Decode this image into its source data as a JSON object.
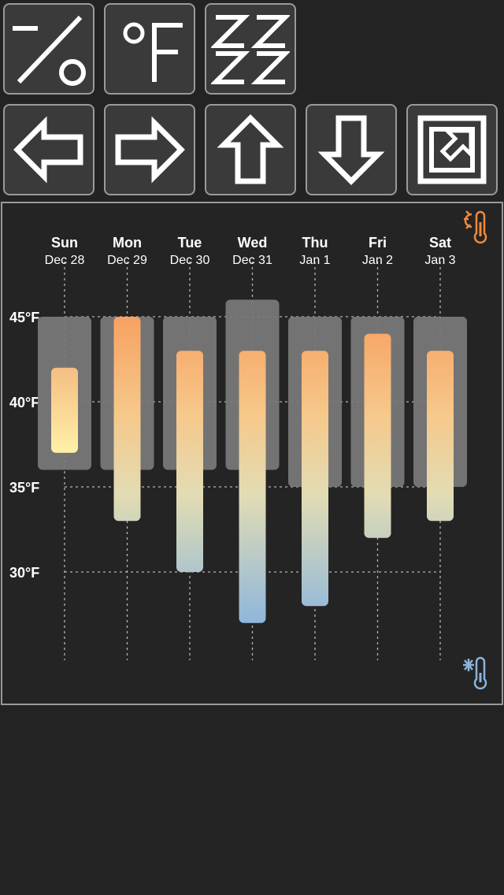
{
  "toolbar": {
    "row1": [
      {
        "name": "percent-toggle-button",
        "icon": "percent-icon"
      },
      {
        "name": "fahrenheit-toggle-button",
        "icon": "fahrenheit-icon"
      },
      {
        "name": "sleep-button",
        "icon": "zzzz-icon"
      }
    ],
    "row2": [
      {
        "name": "pan-left-button",
        "icon": "arrow-left-icon"
      },
      {
        "name": "pan-right-button",
        "icon": "arrow-right-icon"
      },
      {
        "name": "pan-up-button",
        "icon": "arrow-up-icon"
      },
      {
        "name": "pan-down-button",
        "icon": "arrow-down-icon"
      },
      {
        "name": "fullscreen-button",
        "icon": "expand-arrow-icon"
      }
    ]
  },
  "colors": {
    "background": "#232323",
    "button_bg": "#3a3a3a",
    "button_border": "#9a9a9a",
    "range_band": "#7a7a7a",
    "warm": "#f4a064",
    "cool": "#9cbedc",
    "hot_icon": "#f08a3c",
    "cold_icon": "#8ab4dc"
  },
  "chart_data": {
    "type": "bar",
    "subtype": "floating-range",
    "categories": [
      "Sun",
      "Mon",
      "Tue",
      "Wed",
      "Thu",
      "Fri",
      "Sat"
    ],
    "dates": [
      "Dec 28",
      "Dec 29",
      "Dec 30",
      "Dec 31",
      "Jan 1",
      "Jan 2",
      "Jan 3"
    ],
    "y_ticks": [
      45,
      40,
      35,
      30
    ],
    "y_tick_labels": [
      "45°F",
      "40°F",
      "35°F",
      "30°F"
    ],
    "ylim": [
      25,
      50
    ],
    "grid": true,
    "series": [
      {
        "role": "normal-range",
        "low": [
          36,
          36,
          36,
          36,
          35,
          35,
          35
        ],
        "high": [
          45,
          45,
          45,
          46,
          45,
          45,
          45
        ]
      },
      {
        "role": "forecast-range",
        "low": [
          37,
          33,
          30,
          27,
          28,
          32,
          33
        ],
        "high": [
          42,
          45,
          43,
          43,
          43,
          44,
          43
        ]
      }
    ],
    "icons": [
      "thermometer-hot-icon",
      "thermometer-cold-icon"
    ]
  }
}
